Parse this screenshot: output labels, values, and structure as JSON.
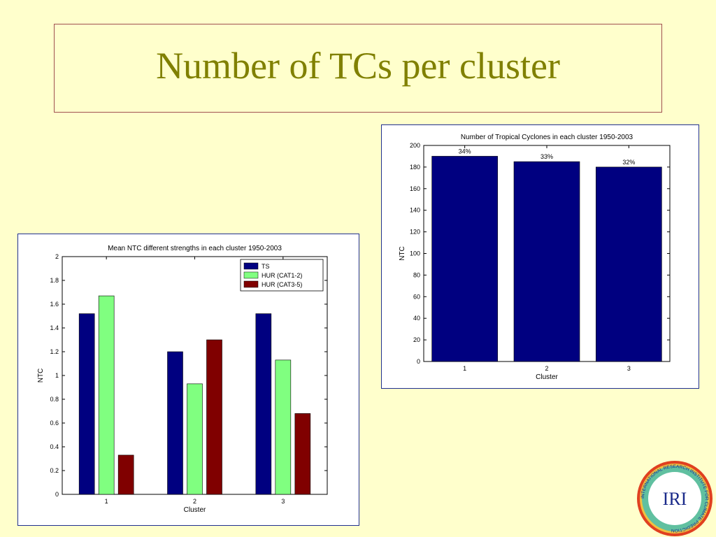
{
  "slide": {
    "title": "Number of TCs per cluster"
  },
  "colors": {
    "background": "#ffffcc",
    "title": "#808000",
    "ts": "#000080",
    "hur12": "#80ff80",
    "hur35": "#800000"
  },
  "chart_data": [
    {
      "type": "bar",
      "title": "Mean NTC different strengths in each cluster 1950-2003",
      "xlabel": "Cluster",
      "ylabel": "NTC",
      "categories": [
        "1",
        "2",
        "3"
      ],
      "ylim": [
        0,
        2
      ],
      "yticks": [
        "0",
        "0.2",
        "0.4",
        "0.6",
        "0.8",
        "1",
        "1.2",
        "1.4",
        "1.6",
        "1.8",
        "2"
      ],
      "legend_position": "top-right",
      "grid": false,
      "series": [
        {
          "name": "TS",
          "color": "#000080",
          "values": [
            1.52,
            1.2,
            1.52
          ]
        },
        {
          "name": "HUR (CAT1-2)",
          "color": "#80ff80",
          "values": [
            1.67,
            0.93,
            1.13
          ]
        },
        {
          "name": "HUR (CAT3-5)",
          "color": "#800000",
          "values": [
            0.33,
            1.3,
            0.68
          ]
        }
      ]
    },
    {
      "type": "bar",
      "title": "Number of Tropical Cyclones in each cluster 1950-2003",
      "xlabel": "Cluster",
      "ylabel": "NTC",
      "categories": [
        "1",
        "2",
        "3"
      ],
      "ylim": [
        0,
        200
      ],
      "yticks": [
        "0",
        "20",
        "40",
        "60",
        "80",
        "100",
        "120",
        "140",
        "160",
        "180",
        "200"
      ],
      "grid": false,
      "series": [
        {
          "color": "#000080",
          "values": [
            190,
            185,
            180
          ],
          "labels": [
            "34%",
            "33%",
            "32%"
          ]
        }
      ]
    }
  ],
  "logo": {
    "text": "IRI",
    "ring_text": "INTERNATIONAL RESEARCH INSTITUTE FOR CLIMATE PREDICTION"
  }
}
